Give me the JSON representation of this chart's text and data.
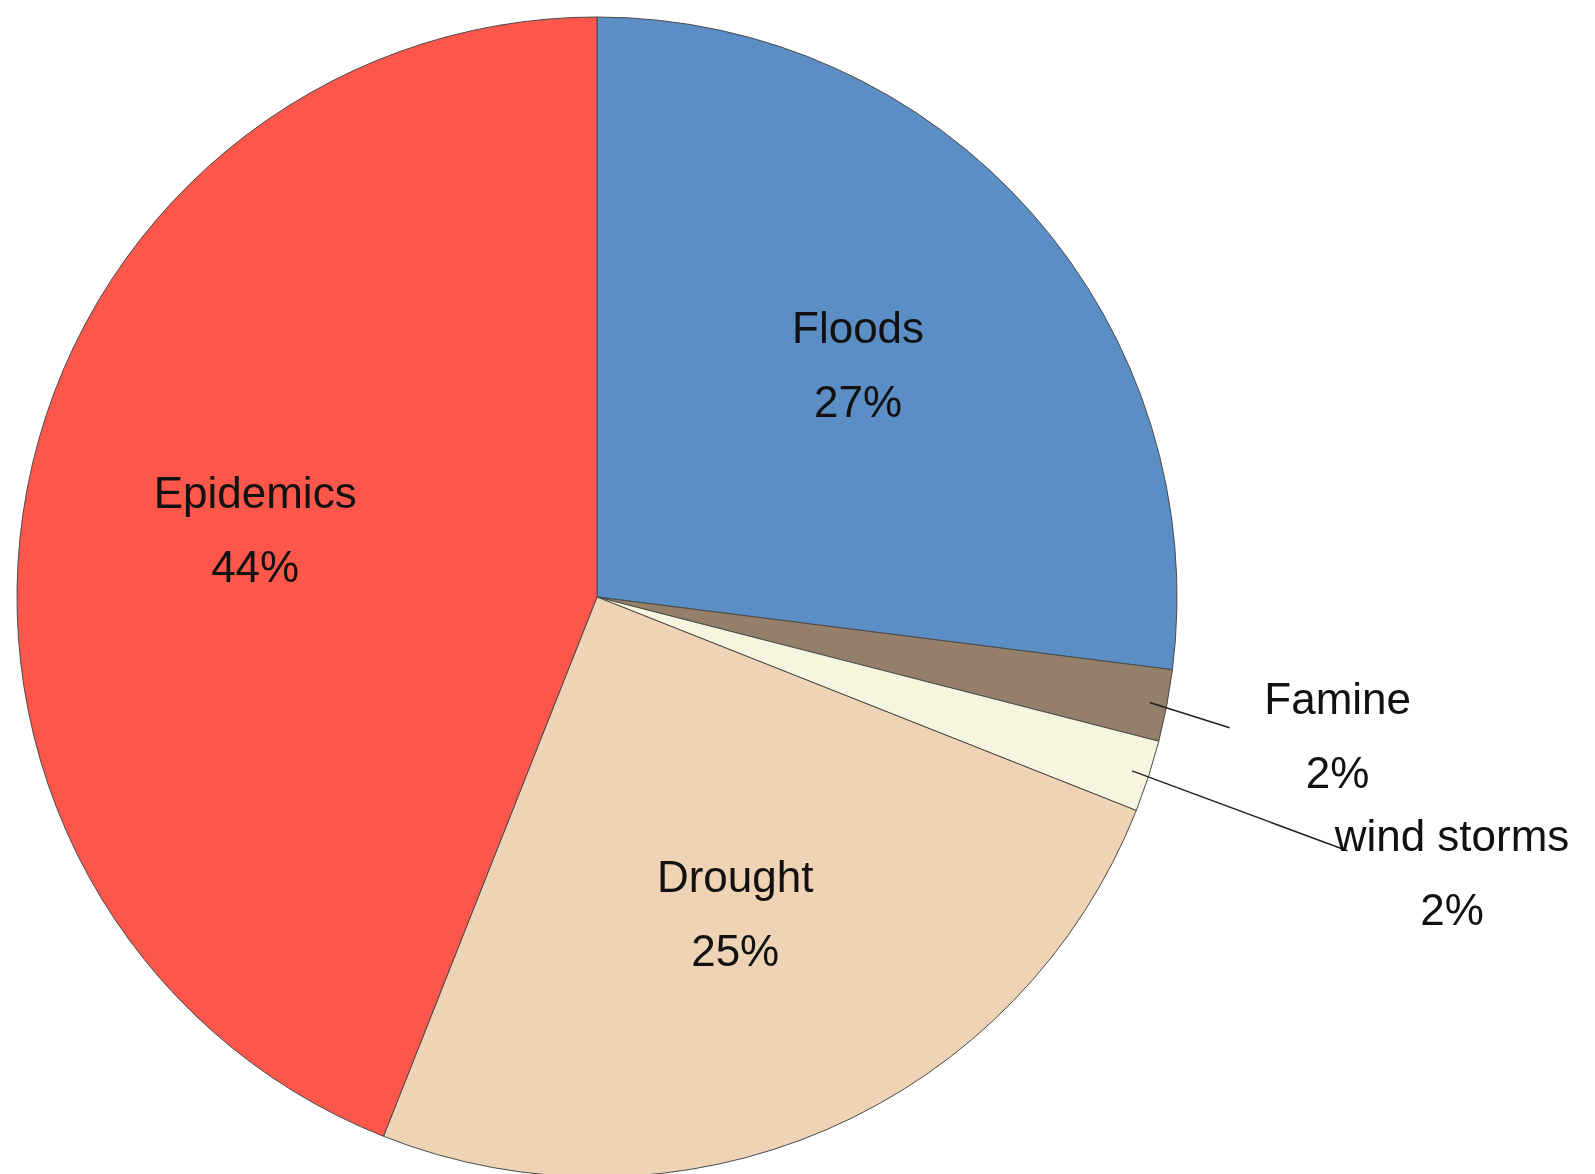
{
  "chart_data": {
    "type": "pie",
    "categories": [
      "Floods",
      "Famine",
      "wind storms",
      "Drought",
      "Epidemics"
    ],
    "values": [
      27,
      2,
      2,
      25,
      44
    ],
    "value_labels": [
      "27%",
      "2%",
      "2%",
      "25%",
      "44%"
    ],
    "colors": [
      "#5a8ec4",
      "#94806a",
      "#f6f6de",
      "#eed3b5",
      "#fd574b"
    ],
    "legend": false
  }
}
